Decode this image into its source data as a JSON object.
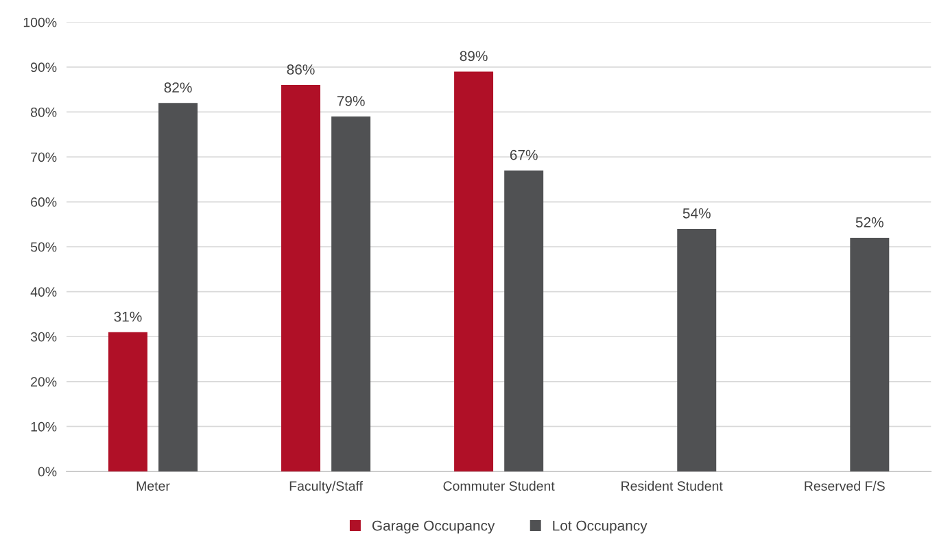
{
  "chart_data": {
    "type": "bar",
    "categories": [
      "Meter",
      "Faculty/Staff",
      "Commuter Student",
      "Resident Student",
      "Reserved F/S"
    ],
    "series": [
      {
        "name": "Garage Occupancy",
        "color": "#b01027",
        "values": [
          31,
          86,
          89,
          null,
          null
        ],
        "value_labels": [
          "31%",
          "86%",
          "89%",
          null,
          null
        ]
      },
      {
        "name": "Lot Occupancy",
        "color": "#505153",
        "values": [
          82,
          79,
          67,
          54,
          52
        ],
        "value_labels": [
          "82%",
          "79%",
          "67%",
          "54%",
          "52%"
        ]
      }
    ],
    "ylim": [
      0,
      100
    ],
    "yticks": [
      {
        "value": 0,
        "label": "0%"
      },
      {
        "value": 10,
        "label": "10%"
      },
      {
        "value": 20,
        "label": "20%"
      },
      {
        "value": 30,
        "label": "30%"
      },
      {
        "value": 40,
        "label": "40%"
      },
      {
        "value": 50,
        "label": "50%"
      },
      {
        "value": 60,
        "label": "60%"
      },
      {
        "value": 70,
        "label": "70%"
      },
      {
        "value": 80,
        "label": "80%"
      },
      {
        "value": 90,
        "label": "90%"
      },
      {
        "value": 100,
        "label": "100%"
      }
    ],
    "grid": "y",
    "legend": "bottom"
  }
}
